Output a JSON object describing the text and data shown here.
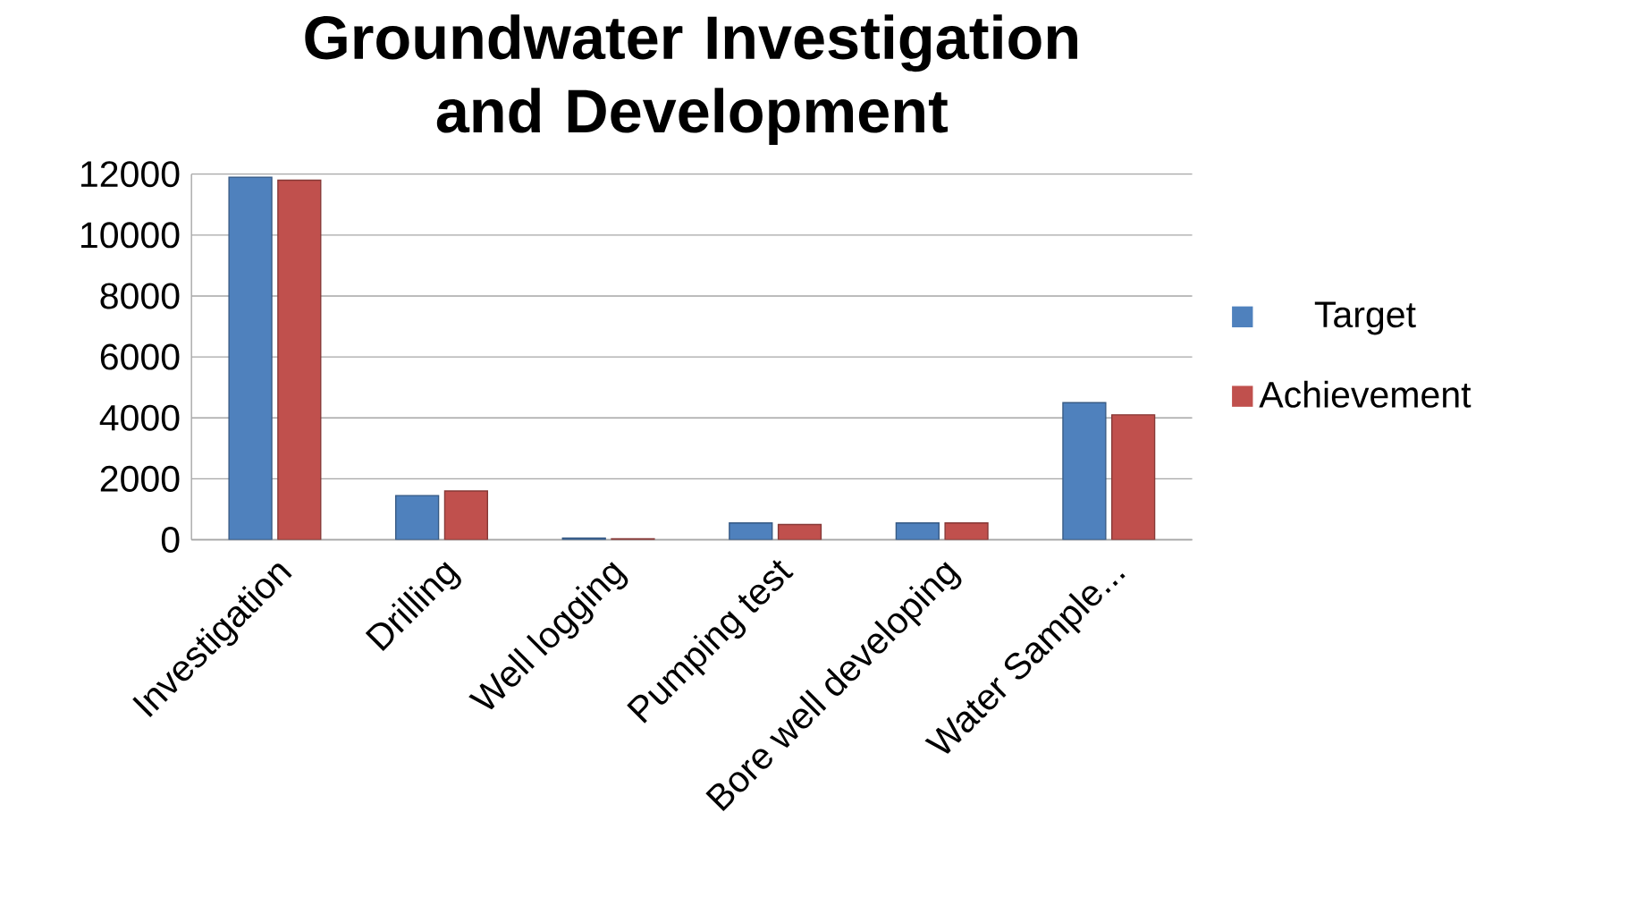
{
  "chart_data": {
    "type": "bar",
    "title": "Groundwater Investigation and Development",
    "categories": [
      "Investigation",
      "Drilling",
      "Well logging",
      "Pumping test",
      "Bore well developing",
      "Water Sample..."
    ],
    "series": [
      {
        "name": "Target",
        "color": "#4f81bd",
        "values": [
          11900,
          1450,
          50,
          550,
          550,
          4500
        ]
      },
      {
        "name": "Achievement",
        "color": "#c0504d",
        "values": [
          11800,
          1600,
          30,
          500,
          550,
          4100
        ]
      }
    ],
    "ylim": [
      0,
      12000
    ],
    "yticks": [
      0,
      2000,
      4000,
      6000,
      8000,
      10000,
      12000
    ],
    "grid": "y",
    "legend": "right"
  }
}
